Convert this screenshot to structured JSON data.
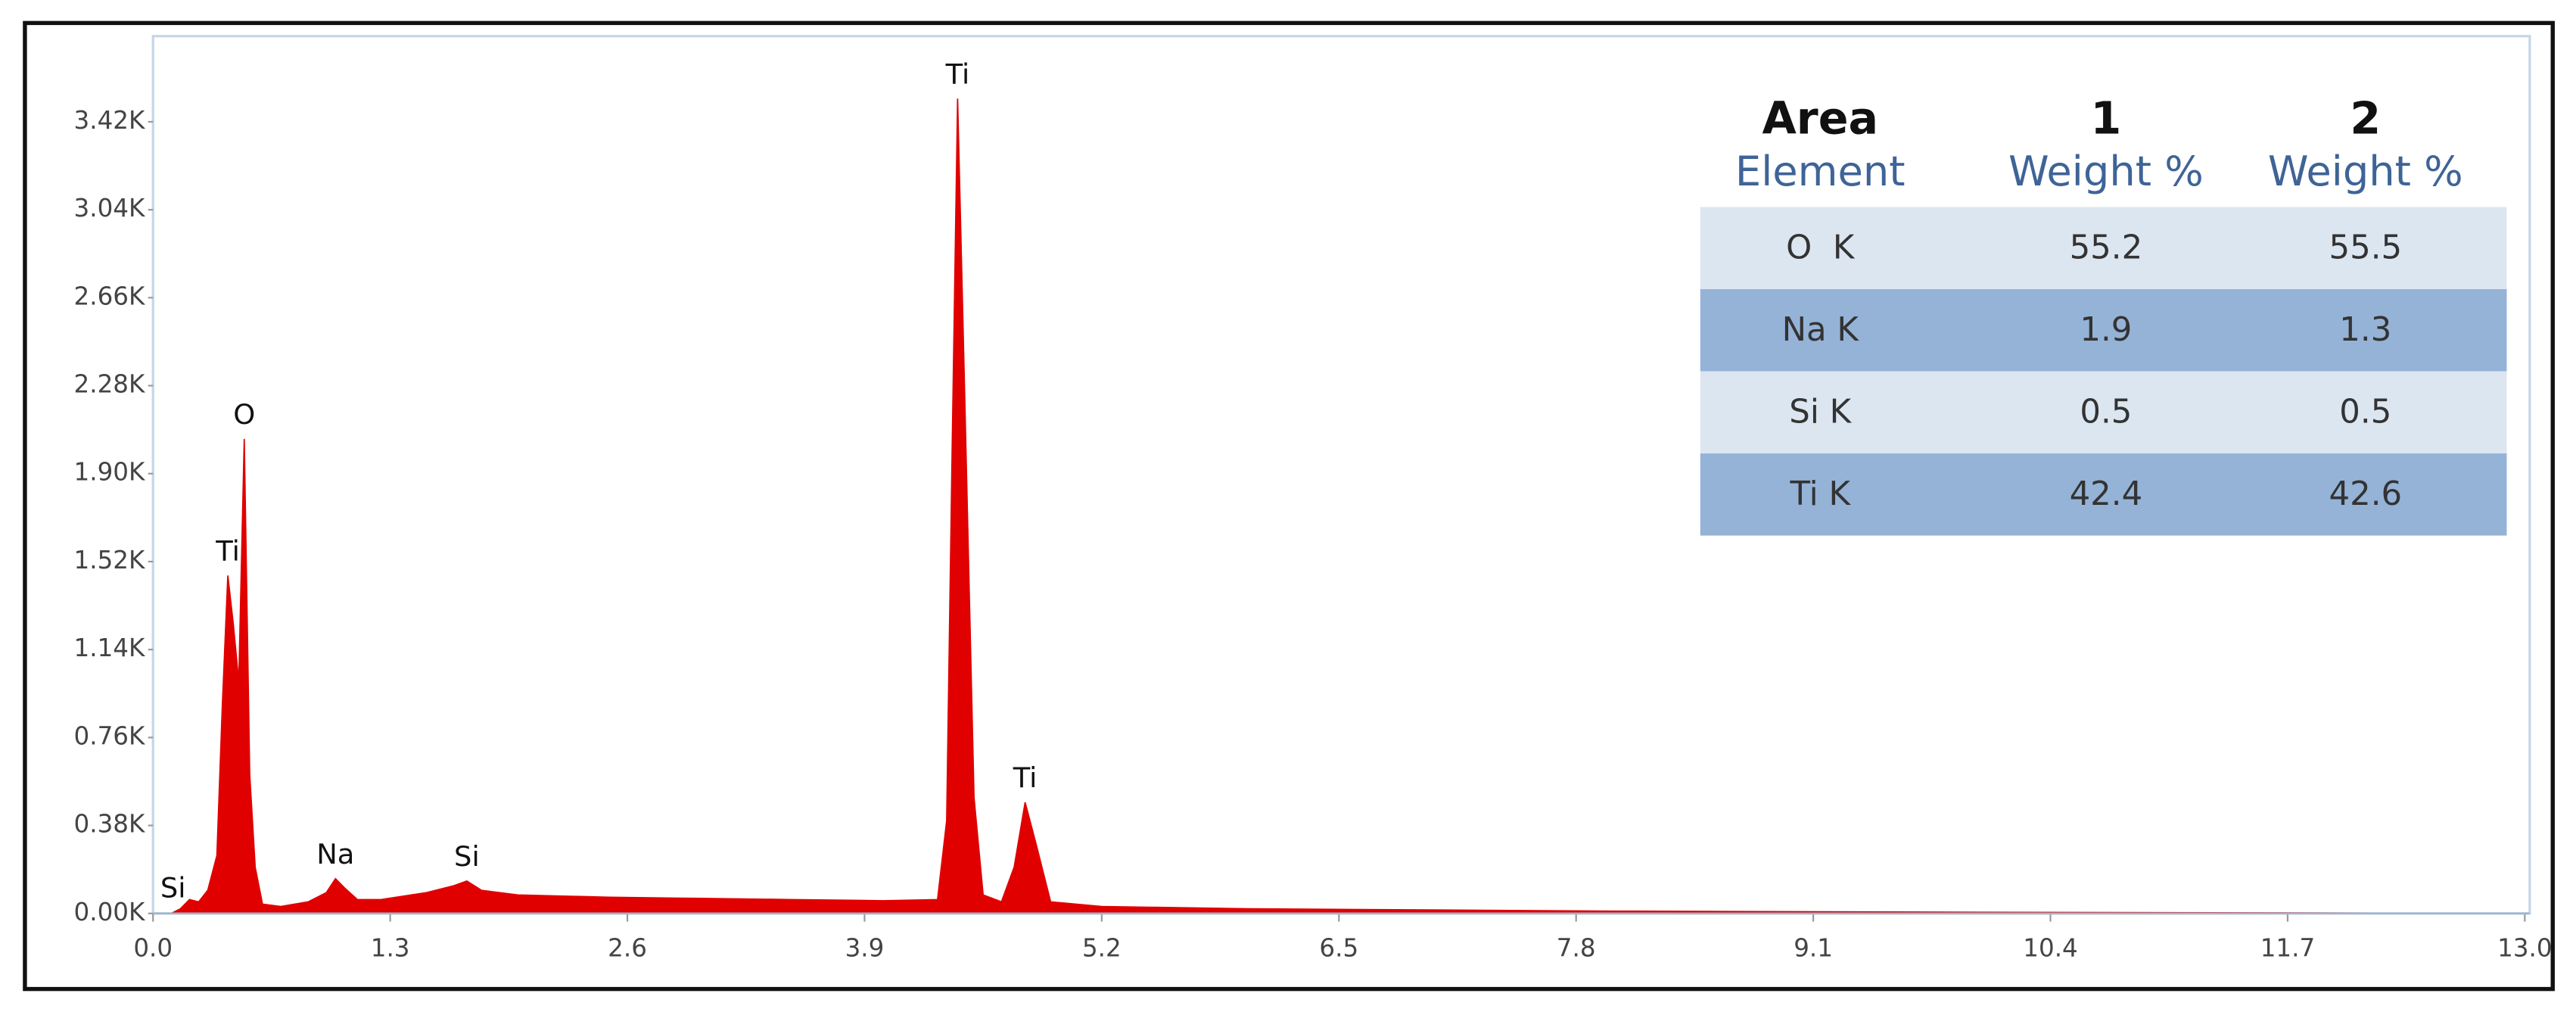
{
  "chart_data": {
    "type": "area",
    "color": "#e00000",
    "x": [
      0.1,
      0.15,
      0.2,
      0.25,
      0.3,
      0.35,
      0.38,
      0.41,
      0.44,
      0.47,
      0.5,
      0.53,
      0.56,
      0.6,
      0.7,
      0.85,
      0.95,
      1.0,
      1.05,
      1.12,
      1.25,
      1.5,
      1.65,
      1.72,
      1.8,
      2.0,
      2.5,
      3.0,
      3.5,
      4.0,
      4.3,
      4.35,
      4.38,
      4.41,
      4.45,
      4.5,
      4.55,
      4.65,
      4.72,
      4.78,
      4.84,
      4.92,
      5.2,
      6.0,
      8.0,
      10.0,
      13.0
    ],
    "values": [
      0,
      20,
      60,
      50,
      100,
      250,
      900,
      1460,
      1250,
      1000,
      2050,
      600,
      200,
      40,
      30,
      50,
      90,
      150,
      110,
      60,
      60,
      90,
      120,
      140,
      100,
      80,
      70,
      65,
      60,
      55,
      60,
      400,
      2000,
      3520,
      2200,
      500,
      80,
      50,
      200,
      480,
      300,
      50,
      30,
      20,
      10,
      5,
      0
    ],
    "xlim": [
      0,
      13.0
    ],
    "ylim": [
      0,
      3790
    ],
    "xticks": [
      {
        "value": 0,
        "label": "0.0"
      },
      1.3,
      2.6,
      3.9,
      5.2,
      6.5,
      7.8,
      9.1,
      10.4,
      11.7,
      {
        "value": 13,
        "label": "13.0"
      }
    ],
    "yticks": [
      {
        "value": 0,
        "label": "0.00K"
      },
      {
        "value": 380,
        "label": "0.38K"
      },
      {
        "value": 760,
        "label": "0.76K"
      },
      {
        "value": 1140,
        "label": "1.14K"
      },
      {
        "value": 1520,
        "label": "1.52K"
      },
      {
        "value": 1900,
        "label": "1.90K"
      },
      {
        "value": 2280,
        "label": "2.28K"
      },
      {
        "value": 2660,
        "label": "2.66K"
      },
      {
        "value": 3040,
        "label": "3.04K"
      },
      {
        "value": 3420,
        "label": "3.42K"
      }
    ],
    "annotations": [
      {
        "text": "Si",
        "x": 0.11
      },
      {
        "text": "Ti",
        "x": 0.41
      },
      {
        "text": "O",
        "x": 0.5
      },
      {
        "text": "Na",
        "x": 1.0
      },
      {
        "text": "Si",
        "x": 1.72
      },
      {
        "text": "Ti",
        "x": 4.41
      },
      {
        "text": "Ti",
        "x": 4.78
      }
    ],
    "table": {
      "header": [
        "Area",
        "1",
        "2"
      ],
      "subheader": [
        "Element",
        "Weight %",
        "Weight %"
      ],
      "rows": [
        [
          "O  K",
          "55.2",
          "55.5"
        ],
        [
          "Na K",
          "1.9",
          "1.3"
        ],
        [
          "Si K",
          "0.5",
          "0.5"
        ],
        [
          "Ti K",
          "42.4",
          "42.6"
        ]
      ]
    }
  }
}
